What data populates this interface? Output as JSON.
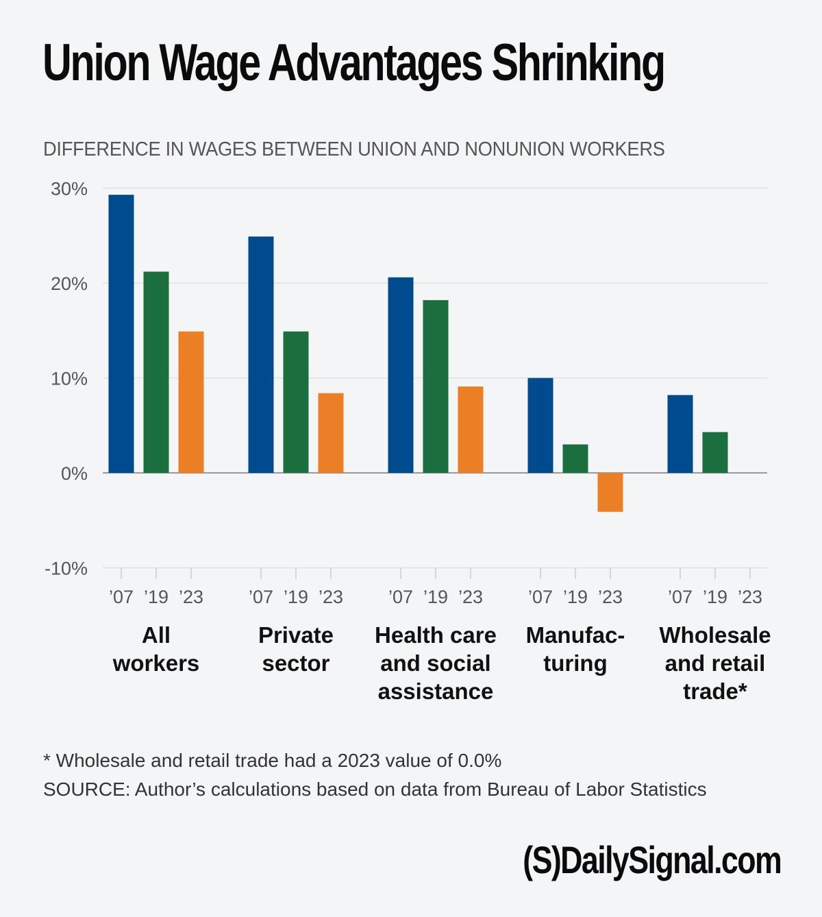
{
  "title": "Union Wage Advantages Shrinking",
  "subtitle": "DIFFERENCE IN WAGES BETWEEN UNION AND NONUNION WORKERS",
  "chart_data": {
    "type": "bar",
    "ylim": [
      -10,
      30
    ],
    "yticks": [
      30,
      20,
      10,
      0,
      -10
    ],
    "ytick_labels": [
      "30%",
      "20%",
      "10%",
      "0%",
      "-10%"
    ],
    "grid": true,
    "categories": [
      [
        "All",
        "workers"
      ],
      [
        "Private",
        "sector"
      ],
      [
        "Health care",
        "and social",
        "assistance"
      ],
      [
        "Manufac-",
        "turing"
      ],
      [
        "Wholesale",
        "and retail",
        "trade*"
      ]
    ],
    "year_labels": [
      "’07",
      "’19",
      "’23"
    ],
    "series": [
      {
        "year": "’07",
        "color": "#004b8d",
        "values": [
          29.3,
          24.9,
          20.6,
          10.0,
          8.2
        ]
      },
      {
        "year": "’19",
        "color": "#1b6e3e",
        "values": [
          21.2,
          14.9,
          18.2,
          3.0,
          4.3
        ]
      },
      {
        "year": "’23",
        "color": "#ec7f26",
        "values": [
          14.9,
          8.4,
          9.1,
          -4.1,
          0.0
        ]
      }
    ]
  },
  "footnote": "* Wholesale and retail trade had a 2023 value of 0.0%",
  "source": "SOURCE: Author’s calculations based on data from Bureau of Labor Statistics",
  "logo": "(S)DailySignal.com"
}
